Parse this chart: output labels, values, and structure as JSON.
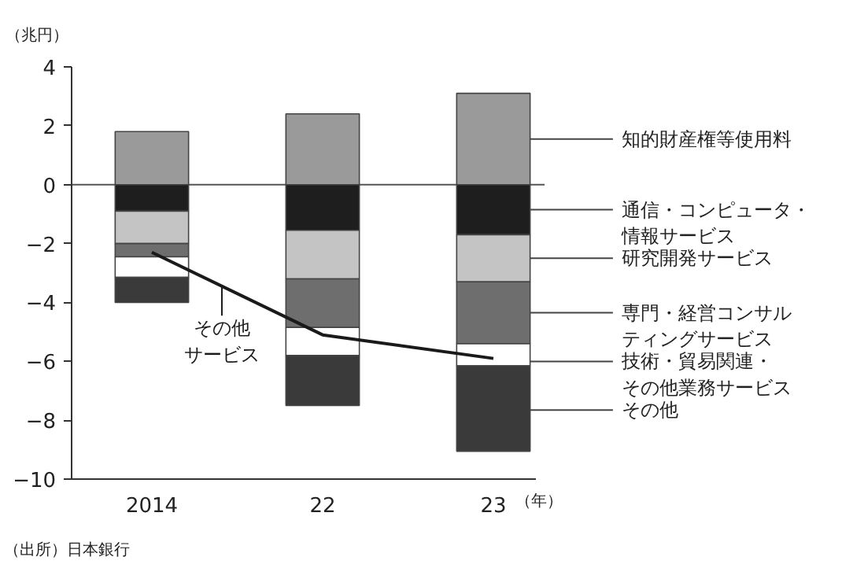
{
  "chart_data": {
    "type": "bar",
    "stacked": true,
    "categories": [
      "2014",
      "22",
      "23"
    ],
    "ylabel": "（兆円）",
    "xlabel": "（年）",
    "ylim": [
      -10,
      4
    ],
    "yticks": [
      4,
      2,
      0,
      -2,
      -4,
      -6,
      -8,
      -10
    ],
    "grid": false,
    "legend": "right",
    "series": [
      {
        "name": "知的財産権等使用料",
        "color": "#9a9a9a",
        "values": [
          1.8,
          2.4,
          3.1
        ]
      },
      {
        "name": "通信・コンピュータ・情報サービス",
        "color": "#1e1e1e",
        "values": [
          -0.9,
          -1.55,
          -1.7
        ]
      },
      {
        "name": "研究開発サービス",
        "color": "#c4c4c4",
        "values": [
          -1.1,
          -1.65,
          -1.6
        ]
      },
      {
        "name": "専門・経営コンサルティングサービス",
        "color": "#6e6e6e",
        "values": [
          -0.45,
          -1.65,
          -2.1
        ]
      },
      {
        "name": "技術・貿易関連・その他業務サービス",
        "color": "#ffffff",
        "values": [
          -0.7,
          -0.95,
          -0.75
        ]
      },
      {
        "name": "その他",
        "color": "#3a3a3a",
        "values": [
          -0.85,
          -1.7,
          -2.9
        ]
      },
      {
        "name": "その他サービス",
        "type": "line",
        "color": "#1a1a1a",
        "values": [
          -2.3,
          -5.1,
          -5.9
        ]
      }
    ],
    "ref_lines": [
      {
        "axis": "y",
        "value": 0,
        "color": "#555555"
      }
    ],
    "annotations": [
      "（出所）日本銀行"
    ]
  }
}
